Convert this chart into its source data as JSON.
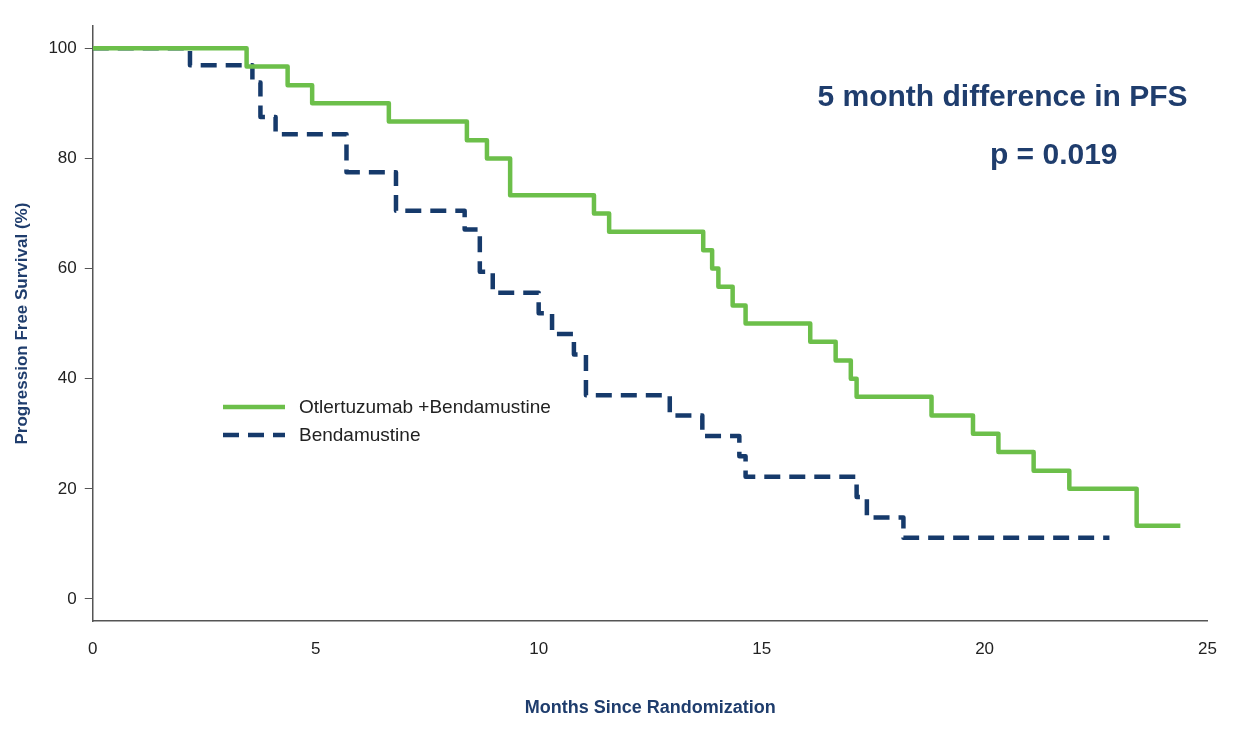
{
  "chart_data": {
    "type": "step",
    "xlabel": "Months Since Randomization",
    "ylabel": "Progression Free Survival (%)",
    "xlim": [
      0,
      25
    ],
    "xticks": [
      0,
      5,
      10,
      15,
      20,
      25
    ],
    "ylim": [
      -4,
      104
    ],
    "yticks": [
      0,
      20,
      40,
      60,
      80,
      100
    ],
    "grid": false,
    "legend": "left",
    "annotations": [
      "5 month difference in PFS",
      "p = 0.019"
    ],
    "series": [
      {
        "name": "Otlertuzumab +Bendamustine",
        "color": "#6cbf4a",
        "line_style": "solid",
        "x": [
          0,
          3.45,
          4.37,
          4.92,
          6.64,
          8.39,
          8.84,
          9.36,
          11.24,
          11.58,
          13.69,
          13.89,
          14.03,
          14.35,
          14.64,
          16.09,
          16.66,
          17.0,
          17.13,
          18.81,
          19.74,
          20.31,
          21.1,
          21.9,
          23.41,
          24.39
        ],
        "values": [
          100,
          96.7,
          93.3,
          90,
          86.7,
          83.3,
          80,
          73.3,
          70,
          66.7,
          63.3,
          60,
          56.7,
          53.3,
          50,
          46.7,
          43.3,
          40,
          36.7,
          33.3,
          30,
          26.7,
          23.3,
          20,
          13.3,
          13.3
        ]
      },
      {
        "name": "Bendamustine",
        "color": "#163a6b",
        "line_style": "dashed",
        "x": [
          0,
          2.18,
          3.58,
          3.76,
          4.1,
          5.69,
          6.8,
          8.34,
          8.68,
          8.97,
          10.0,
          10.3,
          10.79,
          11.06,
          12.94,
          13.67,
          14.5,
          14.64,
          17.13,
          17.36,
          18.18,
          22.8
        ],
        "values": [
          100,
          96.9,
          93.8,
          87.5,
          84.4,
          77.5,
          70.5,
          67.1,
          59.4,
          55.6,
          51.9,
          48.1,
          44.4,
          37.0,
          33.3,
          29.6,
          25.9,
          22.2,
          18.5,
          14.8,
          11.1,
          11.1
        ]
      }
    ]
  }
}
